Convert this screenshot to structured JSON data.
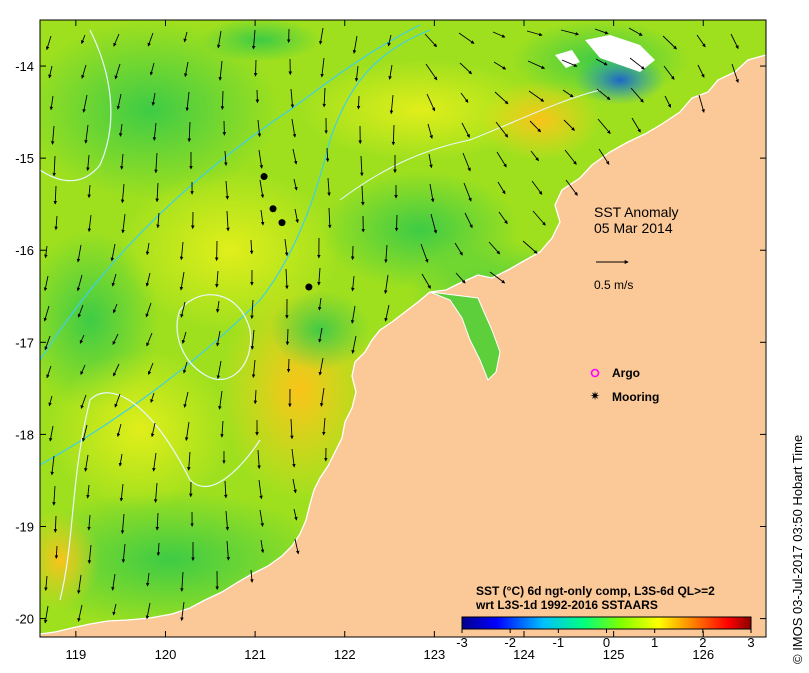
{
  "map": {
    "lon_ticks": [
      "119",
      "120",
      "121",
      "122",
      "123",
      "124",
      "125",
      "126"
    ],
    "lat_ticks": [
      "-14",
      "-15",
      "-16",
      "-17",
      "-18",
      "-19",
      "-20"
    ],
    "lon_range": [
      118.6,
      126.7
    ],
    "lat_range": [
      -20.2,
      -13.5
    ],
    "land_color": "#fbc898",
    "coastline_color": "#ffffff"
  },
  "title": {
    "line1": "SST Anomaly",
    "line2": "05 Mar 2014"
  },
  "vector_scale": {
    "label": "0.5 m/s"
  },
  "legend": {
    "argo_label": "Argo",
    "argo_color": "#ff00ff",
    "mooring_label": "Mooring",
    "mooring_color": "#000000"
  },
  "moorings": [
    {
      "lon": 121.1,
      "lat": -15.2
    },
    {
      "lon": 121.2,
      "lat": -15.55
    },
    {
      "lon": 121.3,
      "lat": -15.7
    },
    {
      "lon": 121.6,
      "lat": -16.4
    }
  ],
  "colorbar": {
    "caption_line1": "SST (°C) 6d ngt-only comp, L3S-6d QL>=2",
    "caption_line2": "wrt L3S-1d 1992-2016 SSTAARS",
    "tick_labels": [
      "-3",
      "-2",
      "-1",
      "0",
      "1",
      "2",
      "3"
    ],
    "range": [
      -3,
      3
    ],
    "colors": [
      "#00008b",
      "#0000ff",
      "#00bfff",
      "#00ff80",
      "#80ff00",
      "#ffff00",
      "#ff8000",
      "#ff0000",
      "#8b0000"
    ]
  },
  "credit": "© IMOS 03-Jul-2017 03:50 Hobart Time"
}
